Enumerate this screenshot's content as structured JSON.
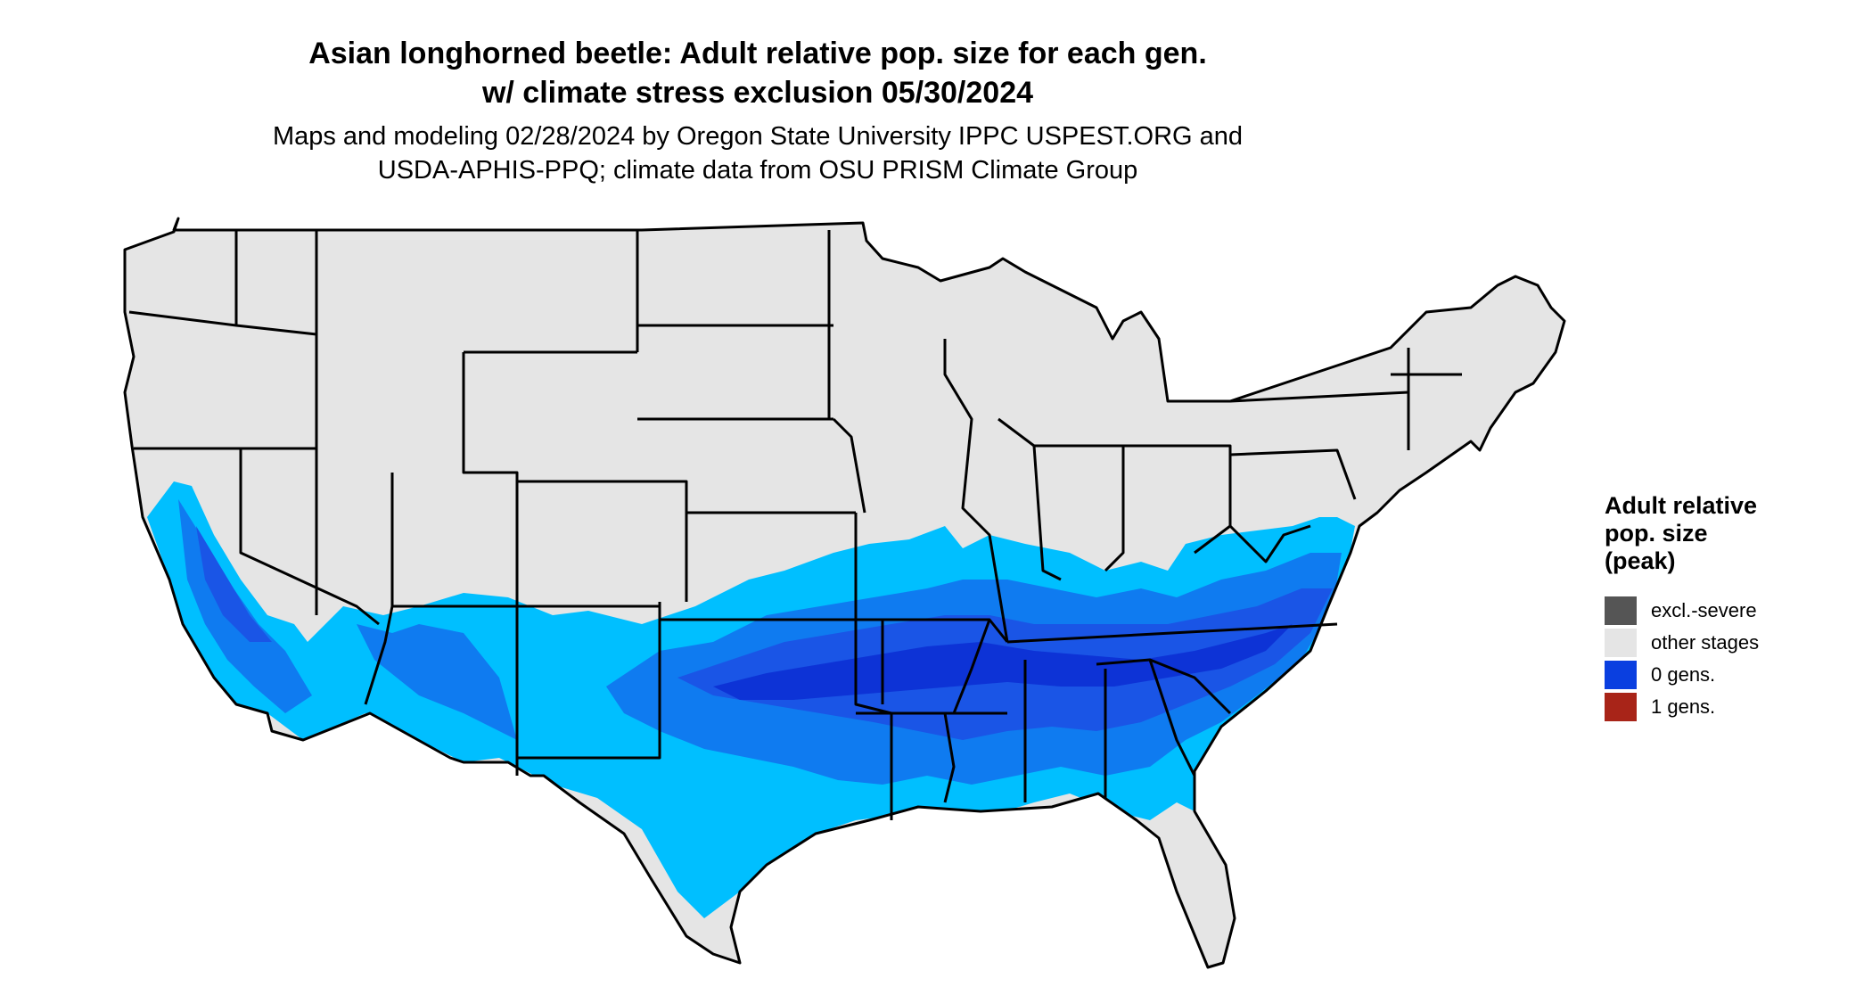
{
  "header": {
    "title_line1": "Asian longhorned beetle: Adult relative pop. size for each gen.",
    "title_line2": "w/ climate stress exclusion 05/30/2024",
    "subtitle_line1": "Maps and modeling 02/28/2024 by Oregon State University IPPC USPEST.ORG and",
    "subtitle_line2": "USDA-APHIS-PPQ; climate data from OSU PRISM Climate Group"
  },
  "legend": {
    "title_line1": "Adult relative",
    "title_line2": "pop. size",
    "title_line3": "(peak)",
    "items": [
      {
        "label": "excl.-severe",
        "color": "#555555"
      },
      {
        "label": "other stages",
        "color": "#e5e5e5"
      },
      {
        "label": "0 gens.",
        "color": "#0a3fe0"
      },
      {
        "label": "1 gens.",
        "color": "#a82418"
      }
    ]
  },
  "colors": {
    "land": "#e5e5e5",
    "border": "#000000",
    "light_blue": "#00bfff",
    "mid_blue": "#0f7bf0",
    "dark_blue": "#1a55e6",
    "darkest_blue": "#0d33d6"
  }
}
